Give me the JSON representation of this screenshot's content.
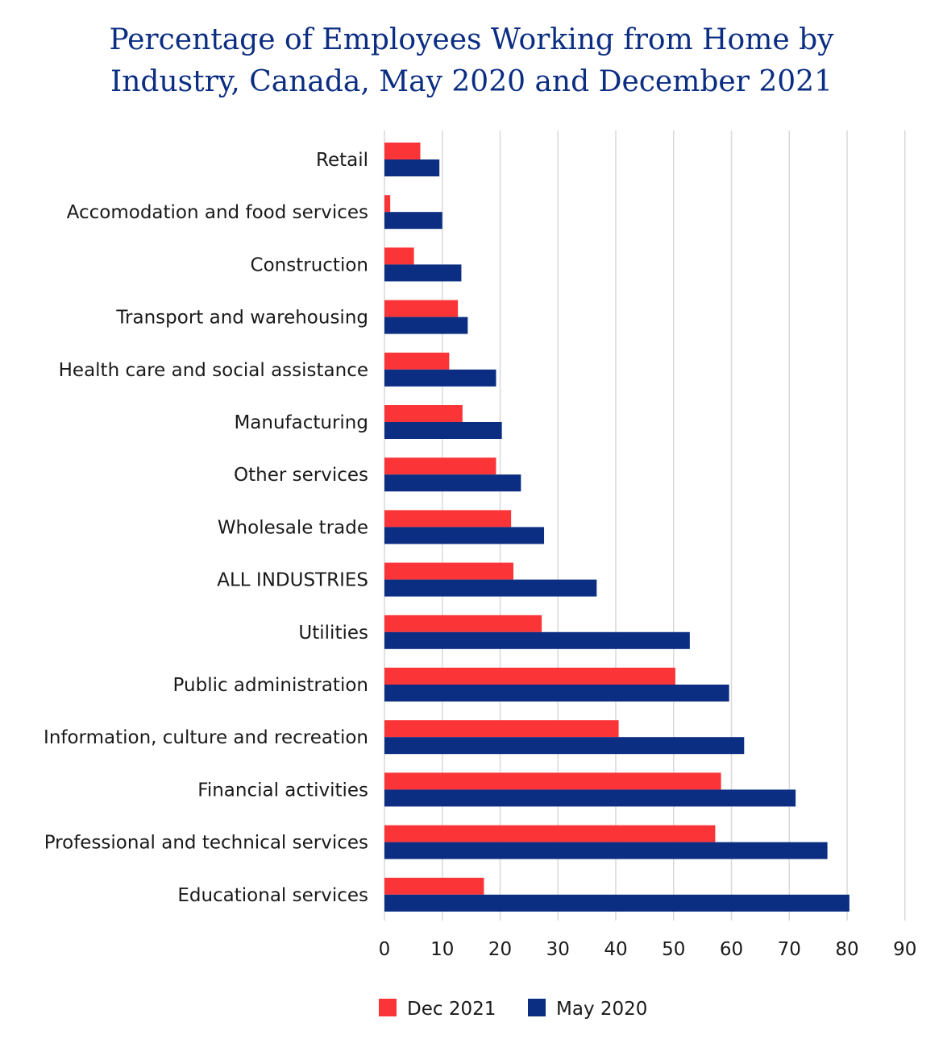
{
  "chart_data": {
    "type": "bar",
    "orientation": "horizontal",
    "title_lines": [
      "Percentage of Employees Working from Home by",
      "Industry, Canada, May 2020 and December 2021"
    ],
    "categories": [
      "Retail",
      "Accomodation and food services",
      "Construction",
      "Transport and warehousing",
      "Health care and social assistance",
      "Manufacturing",
      "Other services",
      "Wholesale trade",
      "ALL INDUSTRIES",
      "Utilities",
      "Public administration",
      "Information, culture and recreation",
      "Financial activities",
      "Professional and technical services",
      "Educational services"
    ],
    "series": [
      {
        "name": "Dec 2021",
        "color": "#fb3438",
        "values": [
          6.2,
          1.0,
          5.1,
          12.7,
          11.2,
          13.5,
          19.3,
          21.9,
          22.3,
          27.2,
          50.3,
          40.5,
          58.2,
          57.2,
          17.2
        ]
      },
      {
        "name": "May 2020",
        "color": "#0b2d82",
        "values": [
          9.5,
          10.0,
          13.3,
          14.4,
          19.3,
          20.3,
          23.6,
          27.6,
          36.7,
          52.8,
          59.6,
          62.2,
          71.1,
          76.6,
          80.4
        ]
      }
    ],
    "xlim": [
      0,
      90
    ],
    "xticks": [
      "0",
      "10",
      "20",
      "30",
      "40",
      "50",
      "60",
      "70",
      "80",
      "90"
    ],
    "grid": true,
    "legend_position": "bottom"
  }
}
